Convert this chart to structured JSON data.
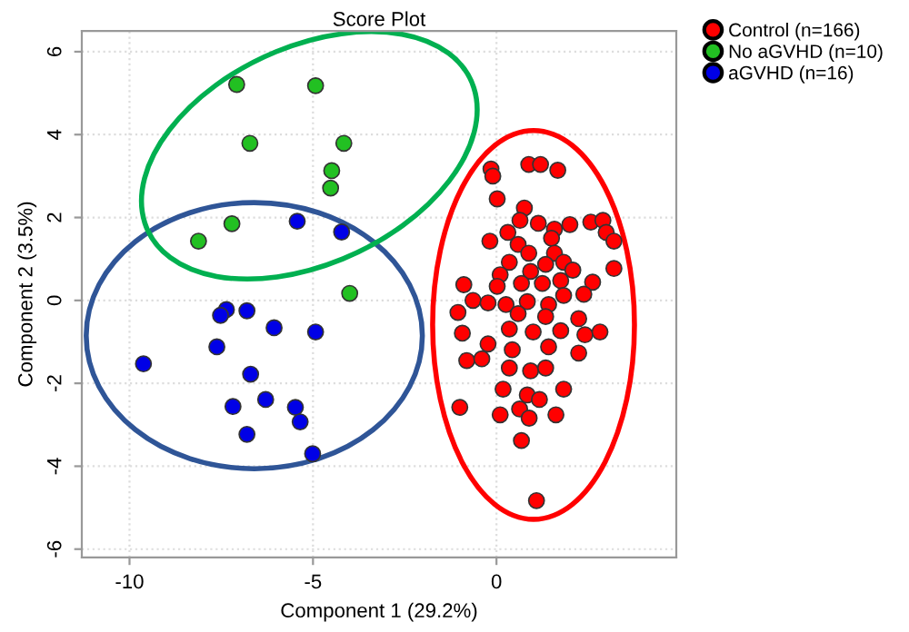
{
  "chart_data": {
    "type": "scatter",
    "title": "Score Plot",
    "xlabel": "Component 1 (29.2%)",
    "ylabel": "Component 2 (3.5%)",
    "xlim": [
      -11.3,
      4.9
    ],
    "ylim": [
      -6.2,
      6.5
    ],
    "xticks": [
      -10,
      -5,
      0
    ],
    "yticks": [
      -6,
      -4,
      -2,
      0,
      2,
      4,
      6
    ],
    "grid": true,
    "legend": "top right",
    "marker": "circle",
    "series": [
      {
        "name": "Control (n=166)",
        "color": "#ff0000",
        "x": [
          -0.15,
          -0.1,
          0.88,
          1.2,
          1.67,
          0.02,
          0.76,
          0.64,
          1.14,
          0.31,
          1.58,
          2.0,
          2.57,
          2.9,
          2.99,
          3.2,
          -0.18,
          0.59,
          1.5,
          0.88,
          1.58,
          0.35,
          1.34,
          1.83,
          2.08,
          3.2,
          0.1,
          0.93,
          -0.89,
          0.02,
          0.68,
          1.25,
          1.75,
          2.62,
          -0.64,
          -0.23,
          0.26,
          0.84,
          1.42,
          1.83,
          2.38,
          -1.05,
          0.59,
          1.34,
          2.24,
          -0.93,
          0.35,
          1.0,
          1.75,
          2.41,
          2.82,
          -0.23,
          0.43,
          1.42,
          2.24,
          -0.81,
          -0.4,
          0.35,
          0.93,
          1.34,
          0.18,
          0.84,
          1.17,
          1.83,
          -1.0,
          0.1,
          0.63,
          0.89,
          1.62,
          0.68,
          1.09
        ],
        "values": [
          3.17,
          3.0,
          3.28,
          3.28,
          3.14,
          2.45,
          2.23,
          1.93,
          1.86,
          1.64,
          1.72,
          1.83,
          1.89,
          1.93,
          1.64,
          1.43,
          1.43,
          1.35,
          1.5,
          1.14,
          1.14,
          0.92,
          0.87,
          0.92,
          0.73,
          0.77,
          0.62,
          0.7,
          0.38,
          0.34,
          0.41,
          0.41,
          0.48,
          0.44,
          0.0,
          -0.06,
          -0.1,
          -0.03,
          -0.1,
          0.12,
          0.15,
          -0.29,
          -0.32,
          -0.39,
          -0.44,
          -0.79,
          -0.69,
          -0.76,
          -0.73,
          -0.83,
          -0.76,
          -1.05,
          -1.19,
          -1.12,
          -1.27,
          -1.45,
          -1.41,
          -1.63,
          -1.7,
          -1.63,
          -2.14,
          -2.28,
          -2.39,
          -2.14,
          -2.58,
          -2.76,
          -2.62,
          -2.84,
          -2.76,
          -3.38,
          -4.83
        ]
      },
      {
        "name": "No aGVHD (n=10)",
        "color": "#22c022",
        "x": [
          -7.08,
          -4.93,
          -6.72,
          -4.16,
          -4.49,
          -4.52,
          -7.21,
          -8.12,
          -4.0
        ],
        "values": [
          5.21,
          5.18,
          3.79,
          3.79,
          3.13,
          2.71,
          1.85,
          1.43,
          0.17
        ]
      },
      {
        "name": "aGVHD (n=16)",
        "color": "#0000e6",
        "x": [
          -5.43,
          -4.22,
          -7.36,
          -7.52,
          -6.8,
          -6.06,
          -4.93,
          -7.62,
          -9.62,
          -6.7,
          -6.29,
          -7.18,
          -5.48,
          -5.35,
          -6.8,
          -5.01
        ],
        "values": [
          1.91,
          1.65,
          -0.22,
          -0.36,
          -0.25,
          -0.66,
          -0.76,
          -1.12,
          -1.53,
          -1.78,
          -2.39,
          -2.56,
          -2.58,
          -2.93,
          -3.23,
          -3.7
        ]
      }
    ]
  }
}
